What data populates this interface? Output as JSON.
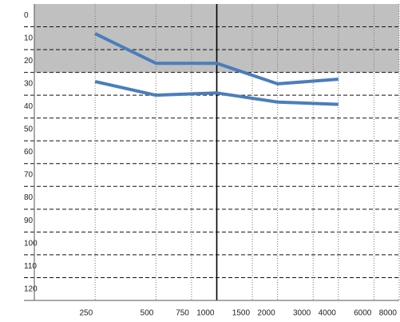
{
  "chart_data": {
    "type": "line",
    "x": [
      250,
      500,
      1000,
      2000,
      4000
    ],
    "series": [
      {
        "color": "#4a7ebb",
        "values": [
          8,
          21,
          21,
          30,
          28
        ]
      },
      {
        "color": "#4a7ebb",
        "values": [
          29,
          35,
          34,
          38,
          39
        ]
      }
    ],
    "xlim": [
      125,
      8000
    ],
    "xscale": "log",
    "xticks": [
      250,
      500,
      750,
      1000,
      1500,
      2000,
      3000,
      4000,
      6000,
      8000
    ],
    "ylim": [
      -5,
      125
    ],
    "y_inverted": true,
    "yticks": [
      0,
      10,
      20,
      30,
      40,
      50,
      60,
      70,
      80,
      90,
      100,
      110,
      120
    ],
    "shaded_range": [
      -5,
      25
    ],
    "shade_color": "#c0c0c0",
    "grid": true
  }
}
